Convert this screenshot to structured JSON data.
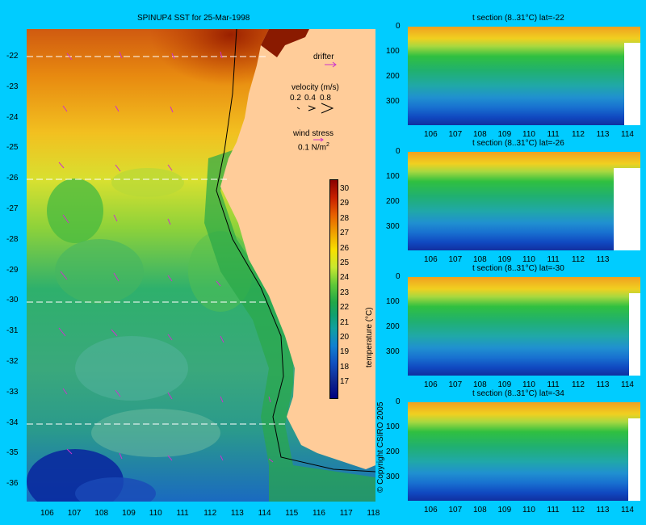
{
  "map": {
    "title": "SPINUP4 SST for 25-Mar-1998",
    "lat_ticks": [
      "-22",
      "-23",
      "-24",
      "-25",
      "-26",
      "-27",
      "-28",
      "-29",
      "-30",
      "-31",
      "-32",
      "-33",
      "-34",
      "-35",
      "-36"
    ],
    "lon_ticks": [
      "106",
      "107",
      "108",
      "109",
      "110",
      "111",
      "112",
      "113",
      "114",
      "115",
      "116",
      "117",
      "118"
    ],
    "legend": {
      "drifter": "drifter",
      "velocity_title": "velocity (m/s)",
      "velocity_values": [
        "0.2",
        "0.4",
        "0.8"
      ],
      "wind_title": "wind stress",
      "wind_value": "0.1 N/m",
      "wind_exp": "2"
    },
    "colorbar": {
      "label": "temperature (°C)",
      "ticks": [
        "30",
        "29",
        "28",
        "27",
        "26",
        "25",
        "24",
        "23",
        "22",
        "21",
        "20",
        "19",
        "18",
        "17"
      ]
    },
    "copyright": "© Copyright CSIRO 2005",
    "colors": {
      "ocean_cold": "#0a2a9e",
      "ocean_warm": "#c03800",
      "land": "#ffcc99",
      "arrow": "#cc33cc"
    }
  },
  "sections": [
    {
      "title": "t section (8..31°C) lat=-22",
      "depth_ticks": [
        "0",
        "100",
        "200",
        "300"
      ],
      "lon_ticks": [
        "106",
        "107",
        "108",
        "109",
        "110",
        "111",
        "112",
        "113",
        "114"
      ]
    },
    {
      "title": "t section (8..31°C) lat=-26",
      "depth_ticks": [
        "0",
        "100",
        "200",
        "300"
      ],
      "lon_ticks": [
        "106",
        "107",
        "108",
        "109",
        "110",
        "111",
        "112",
        "113"
      ]
    },
    {
      "title": "t section (8..31°C) lat=-30",
      "depth_ticks": [
        "0",
        "100",
        "200",
        "300"
      ],
      "lon_ticks": [
        "106",
        "107",
        "108",
        "109",
        "110",
        "111",
        "112",
        "113",
        "114"
      ]
    },
    {
      "title": "t section (8..31°C) lat=-34",
      "depth_ticks": [
        "0",
        "100",
        "200",
        "300"
      ],
      "lon_ticks": [
        "106",
        "107",
        "108",
        "109",
        "110",
        "111",
        "112",
        "113",
        "114"
      ]
    }
  ]
}
